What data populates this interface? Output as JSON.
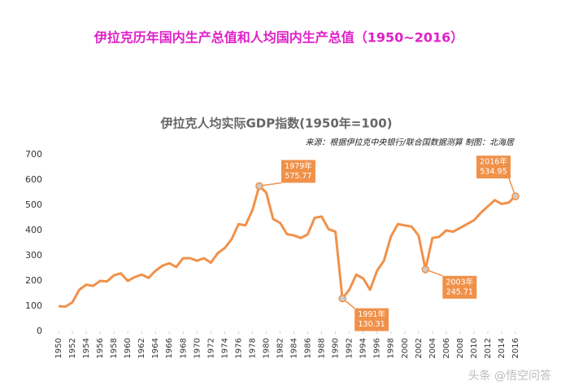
{
  "header": {
    "title": "伊拉克历年国内生产总值和人均国内生产总值（1950~2016）"
  },
  "chart_data": {
    "type": "line",
    "title": "伊拉克人均实际GDP指数(1950年=100)",
    "subtitle": "来源：根据伊拉克中央银行/联合国数据测算 制图：北海居",
    "x": [
      1950,
      1951,
      1952,
      1953,
      1954,
      1955,
      1956,
      1957,
      1958,
      1959,
      1960,
      1961,
      1962,
      1963,
      1964,
      1965,
      1966,
      1967,
      1968,
      1969,
      1970,
      1971,
      1972,
      1973,
      1974,
      1975,
      1976,
      1977,
      1978,
      1979,
      1980,
      1981,
      1982,
      1983,
      1984,
      1985,
      1986,
      1987,
      1988,
      1989,
      1990,
      1991,
      1992,
      1993,
      1994,
      1995,
      1996,
      1997,
      1998,
      1999,
      2000,
      2001,
      2002,
      2003,
      2004,
      2005,
      2006,
      2007,
      2008,
      2009,
      2010,
      2011,
      2012,
      2013,
      2014,
      2015,
      2016
    ],
    "series": [
      {
        "name": "人均实际GDP指数",
        "color": "#f0914a",
        "values": [
          100,
          98,
          115,
          165,
          185,
          180,
          200,
          198,
          222,
          230,
          200,
          215,
          225,
          212,
          240,
          260,
          270,
          255,
          290,
          290,
          280,
          290,
          272,
          310,
          330,
          365,
          425,
          420,
          480,
          575.77,
          550,
          445,
          430,
          385,
          380,
          370,
          385,
          450,
          455,
          405,
          395,
          130.31,
          165,
          225,
          210,
          165,
          240,
          280,
          375,
          425,
          420,
          415,
          380,
          245.71,
          370,
          375,
          400,
          395,
          410,
          425,
          440,
          470,
          495,
          520,
          505,
          510,
          534.95
        ]
      }
    ],
    "xlim": [
      1950,
      2016
    ],
    "xticks": [
      1950,
      1952,
      1954,
      1956,
      1958,
      1960,
      1962,
      1964,
      1966,
      1968,
      1970,
      1972,
      1974,
      1976,
      1978,
      1980,
      1982,
      1984,
      1986,
      1988,
      1990,
      1992,
      1994,
      1996,
      1998,
      2000,
      2002,
      2004,
      2006,
      2008,
      2010,
      2012,
      2014,
      2016
    ],
    "ylim": [
      0,
      700
    ],
    "yticks": [
      0,
      100,
      200,
      300,
      400,
      500,
      600,
      700
    ],
    "grid": false,
    "annotations": [
      {
        "text": "1979年",
        "x": 1979,
        "y": 575.77
      },
      {
        "text": "1991年",
        "x": 1991,
        "y": 130.31
      },
      {
        "text": "2003年",
        "x": 2003,
        "y": 245.71
      },
      {
        "text": "2016年",
        "x": 2016,
        "y": 534.95
      }
    ]
  },
  "watermark": "头条 @悟空问答"
}
